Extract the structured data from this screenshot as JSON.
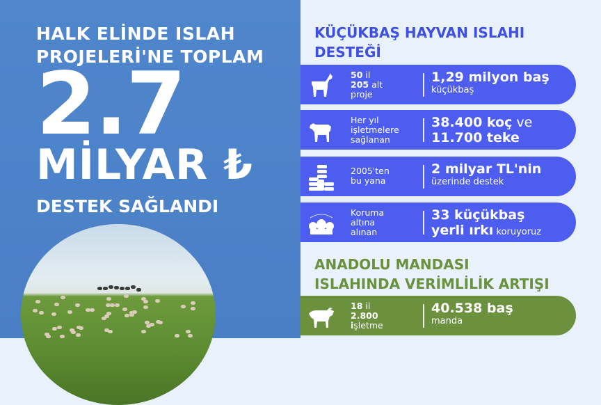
{
  "left": {
    "headline_line1": "HALK ELİNDE ISLAH",
    "headline_line2": "PROJELERİ'NE TOPLAM",
    "amount": "2.7",
    "unit": "MİLYAR ₺",
    "footer": "DESTEK SAĞLANDI"
  },
  "section1": {
    "title_line1": "KÜÇÜKBAŞ HAYVAN ISLAHI",
    "title_line2": "DESTEĞİ",
    "color": "#4c5df0",
    "rows": [
      {
        "icon": "goat-icon",
        "small_bold1": "50",
        "small1": " il",
        "small_bold2": "205",
        "small2": " alt",
        "small3": "proje",
        "main": "1,29 milyon baş",
        "sub": "küçükbaş"
      },
      {
        "icon": "ram-icon",
        "small1": "Her yıl",
        "small2": "işletmelere",
        "small3": "sağlanan",
        "main1": "38.400 koç",
        "main1_suffix": " ve",
        "main2": "11.700 teke"
      },
      {
        "icon": "coins-icon",
        "small1": "2005'ten",
        "small2": "bu yana",
        "main": "2 milyar TL'nin",
        "sub": "üzerinde destek"
      },
      {
        "icon": "sheep-herd-icon",
        "small1": "Koruma",
        "small2": "altına",
        "small3": "alınan",
        "main1": "33 küçükbaş",
        "main2": "yerli ırkı",
        "main2_suffix": " koruyoruz"
      }
    ]
  },
  "section2": {
    "title_line1": "ANADOLU MANDASI",
    "title_line2": "ISLAHINDA VERİMLİLİK ARTIŞI",
    "color": "#6b913e",
    "row": {
      "icon": "water-buffalo-icon",
      "small_bold1": "18",
      "small1": " il",
      "small_bold2": "2.800",
      "small_bold3": "i",
      "small3": "şletme",
      "main": "40.538 baş",
      "sub": "manda"
    }
  }
}
